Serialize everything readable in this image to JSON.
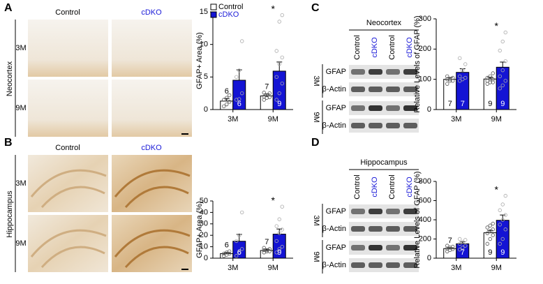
{
  "panels": [
    "A",
    "B",
    "C",
    "D"
  ],
  "micrographs": {
    "columns": [
      "Control",
      "cDKO"
    ],
    "rows": [
      "3M",
      "9M"
    ],
    "regions": [
      "Neocortex",
      "Hippocampus"
    ]
  },
  "blots": [
    {
      "title": "Neocortex",
      "lanes": [
        "Control",
        "cDKO",
        "Control",
        "cDKO"
      ],
      "ages": [
        "3M",
        "9M"
      ],
      "proteins": [
        "GFAP",
        "β-Actin"
      ]
    },
    {
      "title": "Hippocampus",
      "lanes": [
        "Control",
        "cDKO",
        "Control",
        "cDKO"
      ],
      "ages": [
        "3M",
        "9M"
      ],
      "proteins": [
        "GFAP",
        "β-Actin"
      ]
    }
  ],
  "chart_data": [
    {
      "type": "bar",
      "y_label": "GFAP+ Area (%)",
      "categories": [
        "3M",
        "9M"
      ],
      "ylim": [
        0,
        15
      ],
      "yticks": [
        0,
        5,
        10,
        15
      ],
      "legend": true,
      "annotations": [
        null,
        "*"
      ],
      "series": [
        {
          "name": "Control",
          "color": "#ffffff",
          "values": [
            1.3,
            2.1
          ],
          "errors": [
            0.4,
            0.3
          ],
          "n": [
            6,
            7
          ],
          "points": [
            [
              0.5,
              0.8,
              1.2,
              1.5,
              1.8,
              2.2
            ],
            [
              1.5,
              1.8,
              1.9,
              2.0,
              2.2,
              2.5,
              2.6
            ]
          ]
        },
        {
          "name": "cDKO",
          "color": "#1414d4",
          "values": [
            4.5,
            5.9
          ],
          "errors": [
            1.6,
            1.4
          ],
          "n": [
            6,
            9
          ],
          "points": [
            [
              1.5,
              1.6,
              2.5,
              5,
              6,
              10.5
            ],
            [
              1.5,
              2.5,
              4,
              5,
              7,
              8,
              9,
              13.5,
              14.5
            ]
          ]
        }
      ]
    },
    {
      "type": "bar",
      "y_label": "GFAP+ Area (%)",
      "categories": [
        "3M",
        "9M"
      ],
      "ylim": [
        0,
        50
      ],
      "yticks": [
        0,
        10,
        20,
        30,
        40,
        50
      ],
      "legend": false,
      "annotations": [
        null,
        "*"
      ],
      "series": [
        {
          "name": "Control",
          "color": "#ffffff",
          "values": [
            4,
            6.7
          ],
          "errors": [
            1,
            1.2
          ],
          "n": [
            6,
            7
          ],
          "points": [
            [
              2,
              3,
              4,
              4,
              5,
              6
            ],
            [
              5,
              6,
              6,
              7,
              7,
              8,
              9
            ]
          ]
        },
        {
          "name": "cDKO",
          "color": "#1414d4",
          "values": [
            14.8,
            21
          ],
          "errors": [
            6,
            4.5
          ],
          "n": [
            6,
            9
          ],
          "points": [
            [
              2,
              5,
              8,
              15,
              20,
              40
            ],
            [
              5,
              8,
              10,
              15,
              22,
              25,
              28,
              34,
              45
            ]
          ]
        }
      ]
    },
    {
      "type": "bar",
      "y_label": "Relative Levels of GFAP (%)",
      "categories": [
        "3M",
        "9M"
      ],
      "ylim": [
        0,
        300
      ],
      "yticks": [
        0,
        100,
        200,
        300
      ],
      "legend": false,
      "annotations": [
        null,
        "*"
      ],
      "series": [
        {
          "name": "Control",
          "color": "#ffffff",
          "values": [
            100,
            101
          ],
          "errors": [
            6,
            6
          ],
          "n": [
            7,
            9
          ],
          "points": [
            [
              85,
              95,
              95,
              100,
              100,
              105,
              110
            ],
            [
              85,
              90,
              90,
              95,
              100,
              100,
              105,
              110,
              120
            ]
          ]
        },
        {
          "name": "cDKO",
          "color": "#1414d4",
          "values": [
            123,
            140
          ],
          "errors": [
            12,
            17
          ],
          "n": [
            7,
            9
          ],
          "points": [
            [
              95,
              100,
              105,
              110,
              130,
              150,
              170
            ],
            [
              70,
              80,
              95,
              110,
              130,
              160,
              195,
              225,
              255
            ]
          ]
        }
      ]
    },
    {
      "type": "bar",
      "y_label": "Relative Levels of GFAP (%)",
      "categories": [
        "3M",
        "9M"
      ],
      "ylim": [
        0,
        800
      ],
      "yticks": [
        0,
        200,
        400,
        600,
        800
      ],
      "legend": false,
      "annotations": [
        null,
        "*"
      ],
      "series": [
        {
          "name": "Control",
          "color": "#ffffff",
          "values": [
            100,
            265
          ],
          "errors": [
            10,
            25
          ],
          "n": [
            7,
            9
          ],
          "points": [
            [
              70,
              85,
              95,
              100,
              110,
              120,
              130
            ],
            [
              150,
              200,
              240,
              260,
              280,
              300,
              320,
              340,
              360
            ]
          ]
        },
        {
          "name": "cDKO",
          "color": "#1414d4",
          "values": [
            150,
            395
          ],
          "errors": [
            20,
            55
          ],
          "n": [
            7,
            9
          ],
          "points": [
            [
              90,
              110,
              130,
              150,
              170,
              190,
              200
            ],
            [
              150,
              200,
              300,
              350,
              400,
              450,
              500,
              560,
              650
            ]
          ]
        }
      ]
    }
  ]
}
